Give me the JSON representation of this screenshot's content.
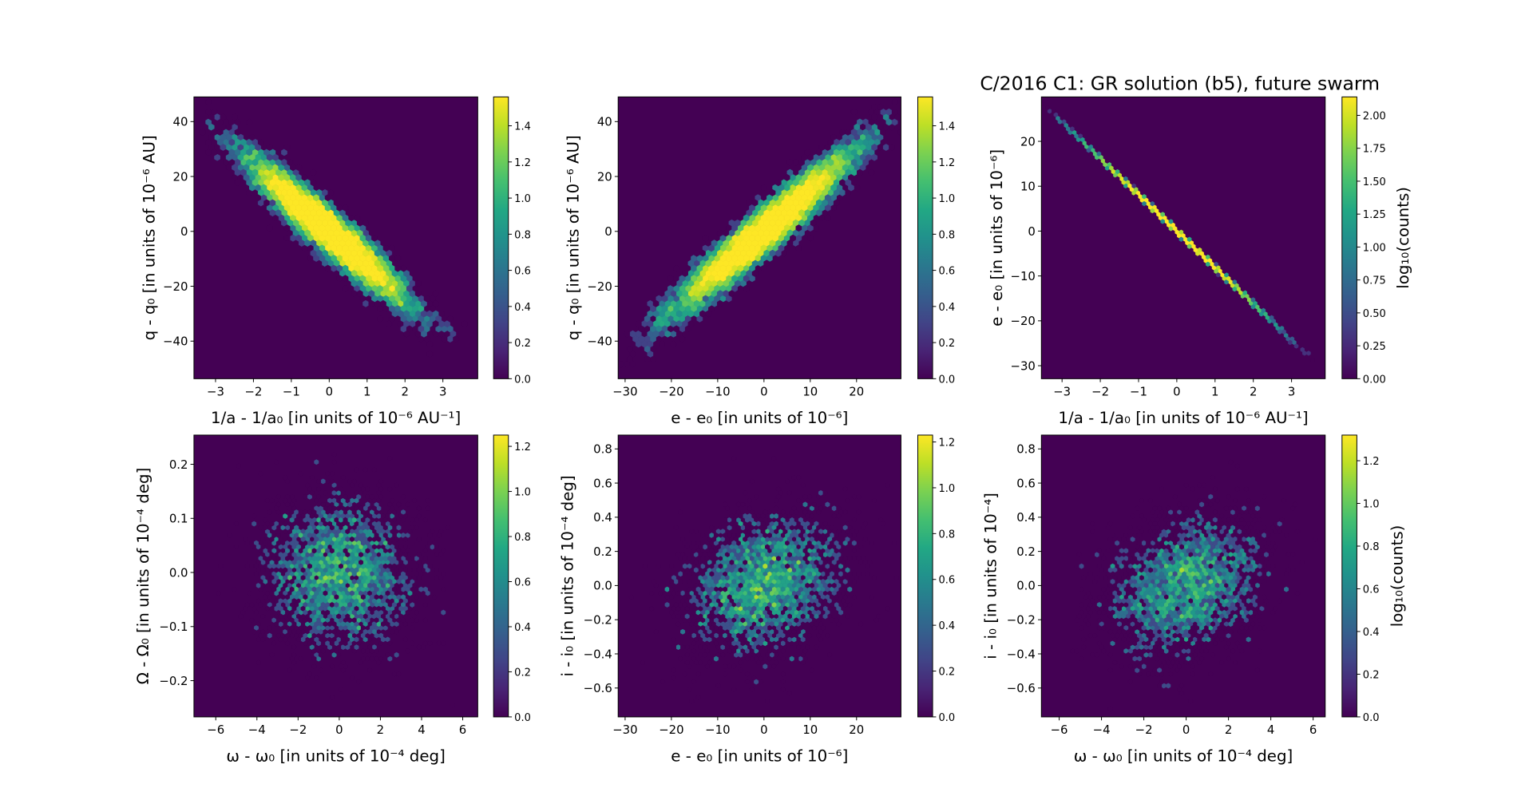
{
  "title": "C/2016 C1: GR solution (b5), future swarm",
  "chart_data": [
    {
      "type": "hexbin",
      "xlabel": "1/a - 1/a₀ [in units of 10⁻⁶ AU⁻¹]",
      "ylabel": "q - q₀ [in units of 10⁻⁶ AU]",
      "xlim": [
        -3.57,
        3.92
      ],
      "ylim": [
        -53.7,
        49
      ],
      "xticks": [
        -3,
        -2,
        -1,
        0,
        1,
        2,
        3
      ],
      "yticks": [
        -40,
        -20,
        0,
        20,
        40
      ],
      "correlation": "strong negative",
      "colorbar": {
        "label": "",
        "min": 0,
        "max": 1.56,
        "ticks": [
          0.0,
          0.2,
          0.4,
          0.6,
          0.8,
          1.0,
          1.2,
          1.4
        ],
        "decimals": 1,
        "colormap": "viridis"
      }
    },
    {
      "type": "hexbin",
      "xlabel": "e - e₀ [in units of 10⁻⁶]",
      "ylabel": "q - q₀ [in units of 10⁻⁶ AU]",
      "xlim": [
        -31.5,
        29.6
      ],
      "ylim": [
        -53.7,
        49
      ],
      "xticks": [
        -30,
        -20,
        -10,
        0,
        10,
        20
      ],
      "yticks": [
        -40,
        -20,
        0,
        20,
        40
      ],
      "correlation": "strong positive",
      "colorbar": {
        "label": "",
        "min": 0,
        "max": 1.56,
        "ticks": [
          0.0,
          0.2,
          0.4,
          0.6,
          0.8,
          1.0,
          1.2,
          1.4
        ],
        "decimals": 1,
        "colormap": "viridis"
      }
    },
    {
      "type": "hexbin",
      "xlabel": "1/a - 1/a₀ [in units of 10⁻⁶ AU⁻¹]",
      "ylabel": "e - e₀ [in units of 10⁻⁶]",
      "xlim": [
        -3.54,
        3.88
      ],
      "ylim": [
        -32.9,
        29.9
      ],
      "xticks": [
        -3,
        -2,
        -1,
        0,
        1,
        2,
        3
      ],
      "yticks": [
        -30,
        -20,
        -10,
        0,
        10,
        20
      ],
      "correlation": "perfect linear negative",
      "colorbar": {
        "label": "log₁₀(counts)",
        "min": 0,
        "max": 2.14,
        "ticks": [
          0.0,
          0.25,
          0.5,
          0.75,
          1.0,
          1.25,
          1.5,
          1.75,
          2.0
        ],
        "decimals": 2,
        "colormap": "viridis"
      }
    },
    {
      "type": "hexbin",
      "xlabel": "ω - ω₀ [in units of 10⁻⁴ deg]",
      "ylabel": "Ω - Ω₀ [in units of 10⁻⁴ deg]",
      "xlim": [
        -7.06,
        6.73
      ],
      "ylim": [
        -0.267,
        0.254
      ],
      "xticks": [
        -6,
        -4,
        -2,
        0,
        2,
        4,
        6
      ],
      "yticks": [
        -0.2,
        -0.1,
        0.0,
        0.1,
        0.2
      ],
      "correlation": "none",
      "colorbar": {
        "label": "",
        "min": 0,
        "max": 1.25,
        "ticks": [
          0.0,
          0.2,
          0.4,
          0.6,
          0.8,
          1.0,
          1.2
        ],
        "decimals": 1,
        "colormap": "viridis"
      }
    },
    {
      "type": "hexbin",
      "xlabel": "e - e₀ [in units of 10⁻⁶]",
      "ylabel": "i - i₀ [in units of 10⁻⁴ deg]",
      "xlim": [
        -31.5,
        29.6
      ],
      "ylim": [
        -0.769,
        0.881
      ],
      "xticks": [
        -30,
        -20,
        -10,
        0,
        10,
        20
      ],
      "yticks": [
        -0.6,
        -0.4,
        -0.2,
        0.0,
        0.2,
        0.4,
        0.6,
        0.8
      ],
      "correlation": "weak positive",
      "colorbar": {
        "label": "",
        "min": 0,
        "max": 1.23,
        "ticks": [
          0.0,
          0.2,
          0.4,
          0.6,
          0.8,
          1.0,
          1.2
        ],
        "decimals": 1,
        "colormap": "viridis"
      }
    },
    {
      "type": "hexbin",
      "xlabel": "ω - ω₀ [in units of 10⁻⁴ deg]",
      "ylabel": "i - i₀ [in units of 10⁻⁴]",
      "xlim": [
        -6.84,
        6.57
      ],
      "ylim": [
        -0.769,
        0.881
      ],
      "xticks": [
        -6,
        -4,
        -2,
        0,
        2,
        4,
        6
      ],
      "yticks": [
        -0.6,
        -0.4,
        -0.2,
        0.0,
        0.2,
        0.4,
        0.6,
        0.8
      ],
      "correlation": "weak positive",
      "colorbar": {
        "label": "log₁₀(counts)",
        "min": 0,
        "max": 1.32,
        "ticks": [
          0.0,
          0.2,
          0.4,
          0.6,
          0.8,
          1.0,
          1.2
        ],
        "decimals": 1,
        "colormap": "viridis"
      }
    }
  ]
}
